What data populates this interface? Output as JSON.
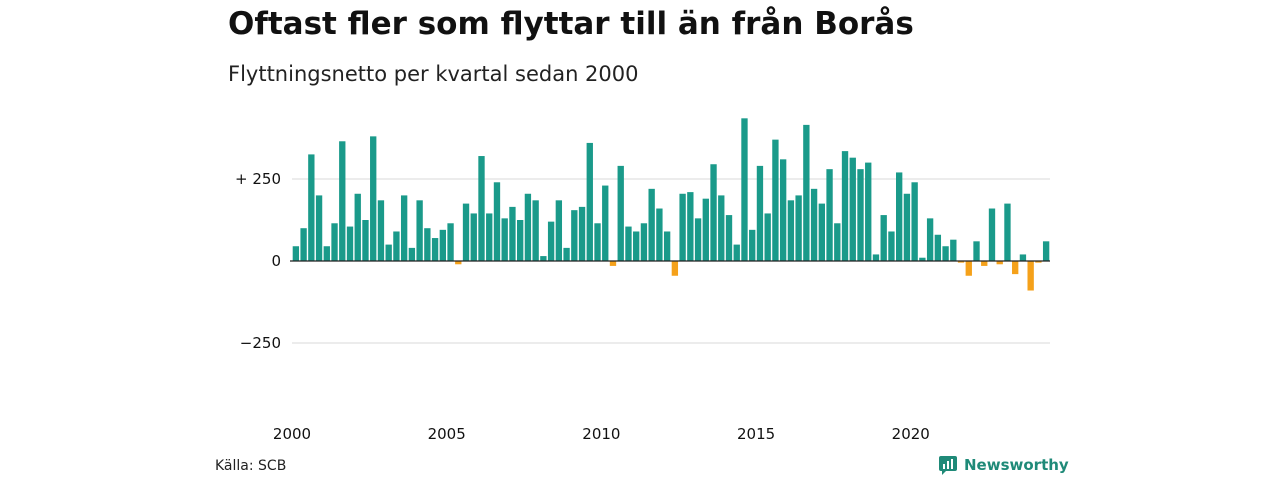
{
  "title": "Oftast fler som flyttar till än från Borås",
  "subtitle": "Flyttningsnetto per kvartal sedan 2000",
  "source": "Källa: SCB",
  "brand": "Newsworthy",
  "colors": {
    "positive": "#1a9a8a",
    "negative": "#f5a11a",
    "grid": "#d9d9d9",
    "axis": "#222222"
  },
  "chart_data": {
    "type": "bar",
    "title": "Oftast fler som flyttar till än från Borås",
    "subtitle": "Flyttningsnetto per kvartal sedan 2000",
    "xlabel": "",
    "ylabel": "",
    "ylim": [
      -400,
      450
    ],
    "y_ticks": [
      {
        "value": 250,
        "label": "+ 250"
      },
      {
        "value": 0,
        "label": "0"
      },
      {
        "value": -250,
        "label": "−250"
      }
    ],
    "x_ticks": [
      {
        "year": 2000,
        "label": "2000"
      },
      {
        "year": 2005,
        "label": "2005"
      },
      {
        "year": 2010,
        "label": "2010"
      },
      {
        "year": 2015,
        "label": "2015"
      },
      {
        "year": 2020,
        "label": "2020"
      }
    ],
    "grid": true,
    "start_year": 2000,
    "start_quarter": 1,
    "values": [
      45,
      100,
      325,
      200,
      45,
      115,
      365,
      105,
      205,
      125,
      380,
      185,
      50,
      90,
      200,
      40,
      185,
      100,
      70,
      95,
      115,
      -10,
      175,
      145,
      320,
      145,
      240,
      130,
      165,
      125,
      205,
      185,
      15,
      120,
      185,
      40,
      155,
      165,
      360,
      115,
      230,
      -15,
      290,
      105,
      90,
      115,
      220,
      160,
      90,
      -45,
      205,
      210,
      130,
      190,
      295,
      200,
      140,
      50,
      435,
      95,
      290,
      145,
      370,
      310,
      185,
      200,
      415,
      220,
      175,
      280,
      115,
      335,
      315,
      280,
      300,
      20,
      140,
      90,
      270,
      205,
      240,
      10,
      130,
      80,
      45,
      65,
      -5,
      -45,
      60,
      -15,
      160,
      -10,
      175,
      -40,
      20,
      -90,
      -5,
      60
    ]
  }
}
